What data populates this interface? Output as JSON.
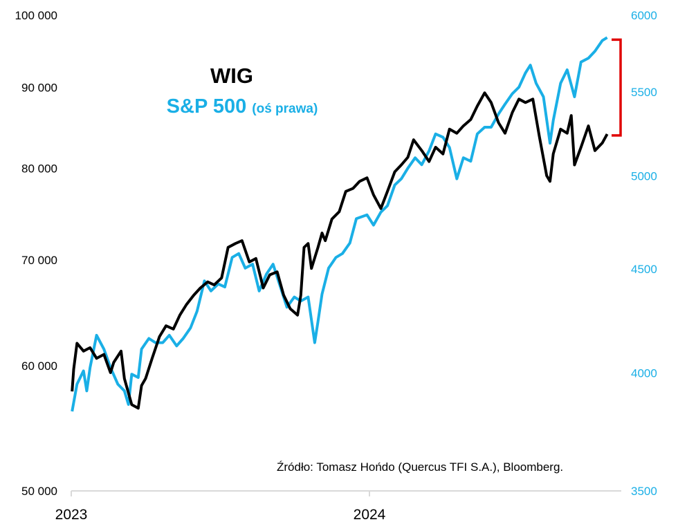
{
  "chart_data": {
    "type": "line",
    "title": "",
    "colors": {
      "wig": "#000000",
      "sp500": "#1AAFE6",
      "bracket": "#E00000",
      "axis": "#D9D9D9"
    },
    "x_axis": {
      "type": "date",
      "range": [
        "2023-01-01",
        "2024-10-31"
      ],
      "tick_labels": [
        "2023",
        "2024"
      ],
      "ticks": [
        "2023-01-01",
        "2024-01-01"
      ]
    },
    "y_left": {
      "scale": "log",
      "range": [
        50000,
        100000
      ],
      "tick_values": [
        50000,
        60000,
        70000,
        80000,
        90000,
        100000
      ],
      "tick_labels": [
        "50 000",
        "60 000",
        "70 000",
        "80 000",
        "90 000",
        "100 000"
      ]
    },
    "y_right": {
      "scale": "log",
      "range": [
        3500,
        6000
      ],
      "tick_values": [
        3500,
        4000,
        4500,
        5000,
        5500,
        6000
      ],
      "tick_labels": [
        "3500",
        "4000",
        "4500",
        "5000",
        "5500",
        "6000"
      ]
    },
    "grid": false,
    "legend": {
      "placement": "top-left",
      "wig": "WIG",
      "sp500": "S&P 500",
      "sp500_note": "(oś prawa)"
    },
    "annotation": {
      "source": "Źródło: Tomasz Hońdo (Quercus TFI S.A.), Bloomberg.",
      "bracket": {
        "axis": "right",
        "from": 5236,
        "to": 5836
      }
    },
    "series": [
      {
        "name": "WIG",
        "axis": "left",
        "x": [
          "2023-01-02",
          "2023-01-04",
          "2023-01-08",
          "2023-01-16",
          "2023-01-24",
          "2023-02-01",
          "2023-02-10",
          "2023-02-18",
          "2023-02-22",
          "2023-03-03",
          "2023-03-07",
          "2023-03-16",
          "2023-03-24",
          "2023-03-28",
          "2023-04-02",
          "2023-04-10",
          "2023-04-19",
          "2023-04-27",
          "2023-05-06",
          "2023-05-14",
          "2023-05-22",
          "2023-05-31",
          "2023-06-08",
          "2023-06-17",
          "2023-06-25",
          "2023-07-04",
          "2023-07-12",
          "2023-07-21",
          "2023-07-29",
          "2023-08-07",
          "2023-08-15",
          "2023-08-24",
          "2023-09-01",
          "2023-09-10",
          "2023-09-18",
          "2023-09-26",
          "2023-10-05",
          "2023-10-09",
          "2023-10-13",
          "2023-10-18",
          "2023-10-22",
          "2023-10-30",
          "2023-11-04",
          "2023-11-08",
          "2023-11-16",
          "2023-11-25",
          "2023-12-03",
          "2023-12-12",
          "2023-12-20",
          "2023-12-29",
          "2024-01-06",
          "2024-01-15",
          "2024-01-23",
          "2024-02-01",
          "2024-02-09",
          "2024-02-17",
          "2024-02-24",
          "2024-03-05",
          "2024-03-14",
          "2024-03-22",
          "2024-03-31",
          "2024-04-08",
          "2024-04-17",
          "2024-04-25",
          "2024-05-04",
          "2024-05-12",
          "2024-05-21",
          "2024-05-29",
          "2024-06-07",
          "2024-06-15",
          "2024-06-24",
          "2024-07-02",
          "2024-07-10",
          "2024-07-19",
          "2024-07-27",
          "2024-08-05",
          "2024-08-09",
          "2024-08-13",
          "2024-08-22",
          "2024-08-30",
          "2024-09-04",
          "2024-09-08",
          "2024-09-16",
          "2024-09-25",
          "2024-10-03",
          "2024-10-12",
          "2024-10-18"
        ],
        "y": [
          57800,
          59700,
          62000,
          61300,
          61600,
          60650,
          61000,
          59400,
          60300,
          61300,
          58900,
          56700,
          56400,
          58300,
          58900,
          60650,
          62600,
          63600,
          63300,
          64600,
          65600,
          66500,
          67200,
          67800,
          67500,
          68200,
          71300,
          71700,
          72000,
          69800,
          70150,
          67200,
          68500,
          68800,
          66500,
          65200,
          64600,
          66500,
          71300,
          71700,
          69150,
          71300,
          72800,
          72000,
          74300,
          75100,
          77350,
          77700,
          78500,
          78900,
          76970,
          75450,
          77350,
          79600,
          80400,
          81300,
          83400,
          82100,
          80800,
          82500,
          81700,
          84700,
          84200,
          85100,
          85900,
          87600,
          89300,
          88050,
          85500,
          84200,
          86800,
          88500,
          88050,
          88500,
          83800,
          79150,
          78500,
          81700,
          84700,
          84200,
          86400,
          80400,
          82500,
          85100,
          82100,
          83000,
          84100
        ]
      },
      {
        "name": "S&P 500",
        "axis": "right",
        "x": [
          "2023-01-02",
          "2023-01-08",
          "2023-01-16",
          "2023-01-20",
          "2023-01-24",
          "2023-02-01",
          "2023-02-10",
          "2023-02-18",
          "2023-02-27",
          "2023-03-07",
          "2023-03-12",
          "2023-03-16",
          "2023-03-24",
          "2023-03-28",
          "2023-04-06",
          "2023-04-14",
          "2023-04-23",
          "2023-05-01",
          "2023-05-10",
          "2023-05-18",
          "2023-05-27",
          "2023-06-04",
          "2023-06-13",
          "2023-06-21",
          "2023-06-30",
          "2023-07-08",
          "2023-07-17",
          "2023-07-25",
          "2023-08-02",
          "2023-08-11",
          "2023-08-19",
          "2023-08-28",
          "2023-09-05",
          "2023-09-14",
          "2023-09-22",
          "2023-10-01",
          "2023-10-09",
          "2023-10-18",
          "2023-10-26",
          "2023-10-30",
          "2023-11-04",
          "2023-11-12",
          "2023-11-21",
          "2023-11-29",
          "2023-12-08",
          "2023-12-16",
          "2023-12-29",
          "2024-01-06",
          "2024-01-15",
          "2024-01-23",
          "2024-02-01",
          "2024-02-09",
          "2024-02-17",
          "2024-02-26",
          "2024-03-05",
          "2024-03-14",
          "2024-03-22",
          "2024-03-31",
          "2024-04-08",
          "2024-04-17",
          "2024-04-25",
          "2024-05-04",
          "2024-05-12",
          "2024-05-21",
          "2024-05-29",
          "2024-06-07",
          "2024-06-15",
          "2024-06-24",
          "2024-07-02",
          "2024-07-10",
          "2024-07-16",
          "2024-07-23",
          "2024-08-01",
          "2024-08-09",
          "2024-08-13",
          "2024-08-22",
          "2024-08-30",
          "2024-09-08",
          "2024-09-16",
          "2024-09-25",
          "2024-10-03",
          "2024-10-12",
          "2024-10-18"
        ],
        "y": [
          3830,
          3950,
          4010,
          3920,
          4025,
          4175,
          4110,
          4025,
          3950,
          3920,
          3860,
          3995,
          3980,
          4110,
          4160,
          4140,
          4140,
          4175,
          4125,
          4160,
          4210,
          4290,
          4440,
          4390,
          4425,
          4410,
          4560,
          4580,
          4505,
          4525,
          4390,
          4475,
          4525,
          4410,
          4310,
          4360,
          4340,
          4360,
          4140,
          4240,
          4375,
          4505,
          4560,
          4580,
          4635,
          4765,
          4785,
          4730,
          4800,
          4835,
          4950,
          4985,
          5045,
          5105,
          5065,
          5145,
          5245,
          5225,
          5165,
          4985,
          5105,
          5085,
          5245,
          5285,
          5285,
          5365,
          5425,
          5490,
          5530,
          5620,
          5670,
          5555,
          5470,
          5190,
          5325,
          5555,
          5640,
          5470,
          5690,
          5715,
          5760,
          5830,
          5850
        ]
      }
    ]
  }
}
